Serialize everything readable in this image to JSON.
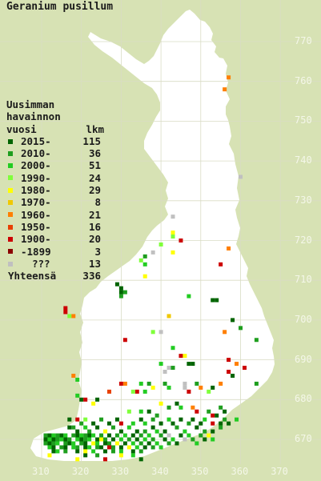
{
  "title": "Geranium pusillum",
  "legend": {
    "header_lines": [
      "Uusimman",
      "havainnon"
    ],
    "col_year": "vuosi",
    "col_count": "lkm",
    "rows": [
      {
        "label": "2015-",
        "count": "115",
        "color": "#006400"
      },
      {
        "label": "2010-",
        "count": "36",
        "color": "#1e9e1e"
      },
      {
        "label": "2000-",
        "count": "51",
        "color": "#22cc22"
      },
      {
        "label": "1990-",
        "count": "24",
        "color": "#7fff3a"
      },
      {
        "label": "1980-",
        "count": "29",
        "color": "#ffff00"
      },
      {
        "label": "1970-",
        "count": "8",
        "color": "#f0c800"
      },
      {
        "label": "1960-",
        "count": "21",
        "color": "#ff7f00"
      },
      {
        "label": "1950-",
        "count": "16",
        "color": "#e84000"
      },
      {
        "label": "1900-",
        "count": "20",
        "color": "#cc0000"
      },
      {
        "label": "-1899",
        "count": "3",
        "color": "#8b0000"
      },
      {
        "label": "???",
        "count": "13",
        "color": "#c0c0c0"
      }
    ],
    "total_label": "Yhteensä",
    "total_count": "336"
  },
  "axis": {
    "y_ticks": [
      "770",
      "760",
      "750",
      "740",
      "730",
      "720",
      "710",
      "700",
      "690",
      "680",
      "670"
    ],
    "x_ticks": [
      "310",
      "320",
      "330",
      "340",
      "350",
      "360",
      "370"
    ]
  },
  "colors": {
    "background": "#d7e2b4",
    "land": "#ffffff",
    "grid": "#d9dcc4"
  },
  "observations": [
    {
      "e": 357,
      "n": 761,
      "c": 6
    },
    {
      "e": 356,
      "n": 758,
      "c": 6
    },
    {
      "e": 360,
      "n": 736,
      "c": 10
    },
    {
      "e": 343,
      "n": 726,
      "c": 10
    },
    {
      "e": 343,
      "n": 722,
      "c": 4
    },
    {
      "e": 343,
      "n": 721,
      "c": 3
    },
    {
      "e": 345,
      "n": 720,
      "c": 8
    },
    {
      "e": 340,
      "n": 719,
      "c": 3
    },
    {
      "e": 357,
      "n": 718,
      "c": 6
    },
    {
      "e": 343,
      "n": 717,
      "c": 4
    },
    {
      "e": 338,
      "n": 717,
      "c": 10
    },
    {
      "e": 336,
      "n": 716,
      "c": 1
    },
    {
      "e": 335,
      "n": 715,
      "c": 3
    },
    {
      "e": 336,
      "n": 714,
      "c": 2
    },
    {
      "e": 355,
      "n": 714,
      "c": 8
    },
    {
      "e": 336,
      "n": 711,
      "c": 4
    },
    {
      "e": 329,
      "n": 709,
      "c": 0
    },
    {
      "e": 330,
      "n": 708,
      "c": 0
    },
    {
      "e": 331,
      "n": 707,
      "c": 1
    },
    {
      "e": 330,
      "n": 707,
      "c": 0
    },
    {
      "e": 330,
      "n": 706,
      "c": 1
    },
    {
      "e": 347,
      "n": 706,
      "c": 2
    },
    {
      "e": 353,
      "n": 705,
      "c": 0
    },
    {
      "e": 354,
      "n": 705,
      "c": 0
    },
    {
      "e": 316,
      "n": 703,
      "c": 8
    },
    {
      "e": 316,
      "n": 702,
      "c": 8
    },
    {
      "e": 317,
      "n": 701,
      "c": 3
    },
    {
      "e": 318,
      "n": 701,
      "c": 6
    },
    {
      "e": 342,
      "n": 701,
      "c": 5
    },
    {
      "e": 358,
      "n": 700,
      "c": 0
    },
    {
      "e": 356,
      "n": 697,
      "c": 6
    },
    {
      "e": 360,
      "n": 698,
      "c": 1
    },
    {
      "e": 364,
      "n": 695,
      "c": 1
    },
    {
      "e": 338,
      "n": 697,
      "c": 3
    },
    {
      "e": 340,
      "n": 697,
      "c": 10
    },
    {
      "e": 331,
      "n": 695,
      "c": 8
    },
    {
      "e": 343,
      "n": 693,
      "c": 2
    },
    {
      "e": 345,
      "n": 691,
      "c": 8
    },
    {
      "e": 346,
      "n": 691,
      "c": 4
    },
    {
      "e": 347,
      "n": 689,
      "c": 0
    },
    {
      "e": 348,
      "n": 689,
      "c": 0
    },
    {
      "e": 340,
      "n": 689,
      "c": 2
    },
    {
      "e": 342,
      "n": 688,
      "c": 10
    },
    {
      "e": 341,
      "n": 687,
      "c": 10
    },
    {
      "e": 343,
      "n": 688,
      "c": 1
    },
    {
      "e": 357,
      "n": 690,
      "c": 8
    },
    {
      "e": 359,
      "n": 689,
      "c": 6
    },
    {
      "e": 361,
      "n": 688,
      "c": 8
    },
    {
      "e": 357,
      "n": 687,
      "c": 8
    },
    {
      "e": 358,
      "n": 686,
      "c": 0
    },
    {
      "e": 364,
      "n": 684,
      "c": 1
    },
    {
      "e": 318,
      "n": 686,
      "c": 6
    },
    {
      "e": 319,
      "n": 685,
      "c": 2
    },
    {
      "e": 330,
      "n": 684,
      "c": 8
    },
    {
      "e": 331,
      "n": 684,
      "c": 6
    },
    {
      "e": 335,
      "n": 684,
      "c": 2
    },
    {
      "e": 337,
      "n": 684,
      "c": 1
    },
    {
      "e": 334,
      "n": 682,
      "c": 8
    },
    {
      "e": 336,
      "n": 682,
      "c": 2
    },
    {
      "e": 338,
      "n": 683,
      "c": 4
    },
    {
      "e": 327,
      "n": 682,
      "c": 7
    },
    {
      "e": 333,
      "n": 682,
      "c": 3
    },
    {
      "e": 341,
      "n": 684,
      "c": 1
    },
    {
      "e": 342,
      "n": 683,
      "c": 2
    },
    {
      "e": 346,
      "n": 684,
      "c": 10
    },
    {
      "e": 346,
      "n": 683,
      "c": 10
    },
    {
      "e": 347,
      "n": 682,
      "c": 8
    },
    {
      "e": 349,
      "n": 684,
      "c": 1
    },
    {
      "e": 350,
      "n": 683,
      "c": 6
    },
    {
      "e": 353,
      "n": 683,
      "c": 0
    },
    {
      "e": 352,
      "n": 682,
      "c": 3
    },
    {
      "e": 355,
      "n": 684,
      "c": 6
    },
    {
      "e": 319,
      "n": 681,
      "c": 2
    },
    {
      "e": 320,
      "n": 680,
      "c": 0
    },
    {
      "e": 321,
      "n": 680,
      "c": 8
    },
    {
      "e": 323,
      "n": 679,
      "c": 4
    },
    {
      "e": 324,
      "n": 680,
      "c": 0
    },
    {
      "e": 340,
      "n": 679,
      "c": 4
    },
    {
      "e": 342,
      "n": 678,
      "c": 1
    },
    {
      "e": 344,
      "n": 679,
      "c": 0
    },
    {
      "e": 345,
      "n": 678,
      "c": 2
    },
    {
      "e": 348,
      "n": 678,
      "c": 6
    },
    {
      "e": 349,
      "n": 677,
      "c": 8
    },
    {
      "e": 352,
      "n": 677,
      "c": 1
    },
    {
      "e": 353,
      "n": 676,
      "c": 8
    },
    {
      "e": 354,
      "n": 676,
      "c": 0
    },
    {
      "e": 355,
      "n": 678,
      "c": 1
    },
    {
      "e": 356,
      "n": 677,
      "c": 0
    },
    {
      "e": 332,
      "n": 677,
      "c": 3
    },
    {
      "e": 335,
      "n": 677,
      "c": 2
    },
    {
      "e": 337,
      "n": 677,
      "c": 0
    },
    {
      "e": 339,
      "n": 676,
      "c": 1
    },
    {
      "e": 317,
      "n": 675,
      "c": 0
    },
    {
      "e": 319,
      "n": 675,
      "c": 8
    },
    {
      "e": 320,
      "n": 674,
      "c": 1
    },
    {
      "e": 321,
      "n": 675,
      "c": 3
    },
    {
      "e": 323,
      "n": 674,
      "c": 0
    },
    {
      "e": 325,
      "n": 675,
      "c": 1
    },
    {
      "e": 327,
      "n": 674,
      "c": 0
    },
    {
      "e": 329,
      "n": 675,
      "c": 0
    },
    {
      "e": 330,
      "n": 674,
      "c": 8
    },
    {
      "e": 333,
      "n": 674,
      "c": 2
    },
    {
      "e": 335,
      "n": 675,
      "c": 0
    },
    {
      "e": 336,
      "n": 674,
      "c": 2
    },
    {
      "e": 338,
      "n": 675,
      "c": 1
    },
    {
      "e": 340,
      "n": 674,
      "c": 0
    },
    {
      "e": 342,
      "n": 675,
      "c": 2
    },
    {
      "e": 343,
      "n": 674,
      "c": 0
    },
    {
      "e": 345,
      "n": 675,
      "c": 0
    },
    {
      "e": 347,
      "n": 674,
      "c": 1
    },
    {
      "e": 348,
      "n": 675,
      "c": 0
    },
    {
      "e": 350,
      "n": 674,
      "c": 0
    },
    {
      "e": 351,
      "n": 675,
      "c": 2
    },
    {
      "e": 353,
      "n": 674,
      "c": 8
    },
    {
      "e": 355,
      "n": 674,
      "c": 0
    },
    {
      "e": 356,
      "n": 675,
      "c": 1
    },
    {
      "e": 357,
      "n": 674,
      "c": 0
    },
    {
      "e": 359,
      "n": 675,
      "c": 2
    },
    {
      "e": 317,
      "n": 673,
      "c": 0
    },
    {
      "e": 318,
      "n": 673,
      "c": 1
    },
    {
      "e": 319,
      "n": 672,
      "c": 0
    },
    {
      "e": 321,
      "n": 673,
      "c": 2
    },
    {
      "e": 322,
      "n": 672,
      "c": 1
    },
    {
      "e": 324,
      "n": 673,
      "c": 0
    },
    {
      "e": 326,
      "n": 672,
      "c": 4
    },
    {
      "e": 328,
      "n": 673,
      "c": 1
    },
    {
      "e": 330,
      "n": 672,
      "c": 0
    },
    {
      "e": 332,
      "n": 673,
      "c": 2
    },
    {
      "e": 334,
      "n": 672,
      "c": 0
    },
    {
      "e": 336,
      "n": 672,
      "c": 1
    },
    {
      "e": 338,
      "n": 673,
      "c": 0
    },
    {
      "e": 339,
      "n": 672,
      "c": 2
    },
    {
      "e": 341,
      "n": 672,
      "c": 0
    },
    {
      "e": 344,
      "n": 673,
      "c": 1
    },
    {
      "e": 346,
      "n": 672,
      "c": 2
    },
    {
      "e": 349,
      "n": 673,
      "c": 0
    },
    {
      "e": 351,
      "n": 672,
      "c": 1
    },
    {
      "e": 353,
      "n": 672,
      "c": 0
    },
    {
      "e": 355,
      "n": 673,
      "c": 1
    },
    {
      "e": 311,
      "n": 671,
      "c": 1
    },
    {
      "e": 312,
      "n": 671,
      "c": 0
    },
    {
      "e": 313,
      "n": 671,
      "c": 2
    },
    {
      "e": 314,
      "n": 671,
      "c": 1
    },
    {
      "e": 315,
      "n": 671,
      "c": 0
    },
    {
      "e": 316,
      "n": 671,
      "c": 2
    },
    {
      "e": 318,
      "n": 671,
      "c": 1
    },
    {
      "e": 319,
      "n": 671,
      "c": 0
    },
    {
      "e": 320,
      "n": 671,
      "c": 2
    },
    {
      "e": 321,
      "n": 671,
      "c": 1
    },
    {
      "e": 322,
      "n": 671,
      "c": 0
    },
    {
      "e": 323,
      "n": 671,
      "c": 2
    },
    {
      "e": 325,
      "n": 671,
      "c": 1
    },
    {
      "e": 327,
      "n": 671,
      "c": 0
    },
    {
      "e": 329,
      "n": 671,
      "c": 1
    },
    {
      "e": 331,
      "n": 671,
      "c": 2
    },
    {
      "e": 333,
      "n": 671,
      "c": 0
    },
    {
      "e": 335,
      "n": 671,
      "c": 1
    },
    {
      "e": 337,
      "n": 671,
      "c": 2
    },
    {
      "e": 340,
      "n": 671,
      "c": 1
    },
    {
      "e": 342,
      "n": 671,
      "c": 10
    },
    {
      "e": 345,
      "n": 671,
      "c": 0
    },
    {
      "e": 347,
      "n": 671,
      "c": 2
    },
    {
      "e": 350,
      "n": 671,
      "c": 1
    },
    {
      "e": 352,
      "n": 671,
      "c": 4
    },
    {
      "e": 311,
      "n": 670,
      "c": 0
    },
    {
      "e": 312,
      "n": 670,
      "c": 2
    },
    {
      "e": 313,
      "n": 670,
      "c": 0
    },
    {
      "e": 314,
      "n": 670,
      "c": 1
    },
    {
      "e": 315,
      "n": 670,
      "c": 2
    },
    {
      "e": 316,
      "n": 670,
      "c": 0
    },
    {
      "e": 317,
      "n": 670,
      "c": 1
    },
    {
      "e": 319,
      "n": 670,
      "c": 2
    },
    {
      "e": 320,
      "n": 670,
      "c": 0
    },
    {
      "e": 321,
      "n": 670,
      "c": 1
    },
    {
      "e": 322,
      "n": 670,
      "c": 2
    },
    {
      "e": 324,
      "n": 670,
      "c": 0
    },
    {
      "e": 325,
      "n": 670,
      "c": 4
    },
    {
      "e": 326,
      "n": 670,
      "c": 1
    },
    {
      "e": 328,
      "n": 670,
      "c": 0
    },
    {
      "e": 330,
      "n": 670,
      "c": 2
    },
    {
      "e": 332,
      "n": 670,
      "c": 1
    },
    {
      "e": 334,
      "n": 670,
      "c": 0
    },
    {
      "e": 336,
      "n": 670,
      "c": 2
    },
    {
      "e": 338,
      "n": 670,
      "c": 1
    },
    {
      "e": 341,
      "n": 670,
      "c": 0
    },
    {
      "e": 343,
      "n": 670,
      "c": 2
    },
    {
      "e": 346,
      "n": 670,
      "c": 10
    },
    {
      "e": 348,
      "n": 670,
      "c": 1
    },
    {
      "e": 351,
      "n": 670,
      "c": 0
    },
    {
      "e": 353,
      "n": 670,
      "c": 2
    },
    {
      "e": 311,
      "n": 669,
      "c": 1
    },
    {
      "e": 312,
      "n": 669,
      "c": 0
    },
    {
      "e": 313,
      "n": 669,
      "c": 1
    },
    {
      "e": 314,
      "n": 669,
      "c": 2
    },
    {
      "e": 316,
      "n": 669,
      "c": 1
    },
    {
      "e": 317,
      "n": 669,
      "c": 0
    },
    {
      "e": 318,
      "n": 669,
      "c": 2
    },
    {
      "e": 320,
      "n": 669,
      "c": 1
    },
    {
      "e": 321,
      "n": 669,
      "c": 0
    },
    {
      "e": 323,
      "n": 669,
      "c": 4
    },
    {
      "e": 324,
      "n": 669,
      "c": 2
    },
    {
      "e": 326,
      "n": 669,
      "c": 0
    },
    {
      "e": 327,
      "n": 669,
      "c": 1
    },
    {
      "e": 329,
      "n": 669,
      "c": 4
    },
    {
      "e": 331,
      "n": 669,
      "c": 0
    },
    {
      "e": 333,
      "n": 669,
      "c": 2
    },
    {
      "e": 335,
      "n": 669,
      "c": 1
    },
    {
      "e": 337,
      "n": 669,
      "c": 0
    },
    {
      "e": 339,
      "n": 669,
      "c": 2
    },
    {
      "e": 342,
      "n": 669,
      "c": 1
    },
    {
      "e": 344,
      "n": 669,
      "c": 0
    },
    {
      "e": 349,
      "n": 669,
      "c": 2
    },
    {
      "e": 312,
      "n": 668,
      "c": 2
    },
    {
      "e": 313,
      "n": 668,
      "c": 0
    },
    {
      "e": 315,
      "n": 668,
      "c": 1
    },
    {
      "e": 316,
      "n": 668,
      "c": 0
    },
    {
      "e": 318,
      "n": 668,
      "c": 2
    },
    {
      "e": 319,
      "n": 668,
      "c": 1
    },
    {
      "e": 321,
      "n": 668,
      "c": 0
    },
    {
      "e": 322,
      "n": 668,
      "c": 2
    },
    {
      "e": 324,
      "n": 668,
      "c": 1
    },
    {
      "e": 325,
      "n": 668,
      "c": 0
    },
    {
      "e": 327,
      "n": 668,
      "c": 8
    },
    {
      "e": 328,
      "n": 668,
      "c": 1
    },
    {
      "e": 330,
      "n": 668,
      "c": 0
    },
    {
      "e": 332,
      "n": 668,
      "c": 4
    },
    {
      "e": 334,
      "n": 668,
      "c": 2
    },
    {
      "e": 336,
      "n": 668,
      "c": 0
    },
    {
      "e": 338,
      "n": 668,
      "c": 1
    },
    {
      "e": 340,
      "n": 668,
      "c": 2
    },
    {
      "e": 313,
      "n": 667,
      "c": 0
    },
    {
      "e": 314,
      "n": 667,
      "c": 2
    },
    {
      "e": 316,
      "n": 667,
      "c": 1
    },
    {
      "e": 319,
      "n": 667,
      "c": 0
    },
    {
      "e": 321,
      "n": 667,
      "c": 4
    },
    {
      "e": 323,
      "n": 667,
      "c": 2
    },
    {
      "e": 326,
      "n": 667,
      "c": 0
    },
    {
      "e": 328,
      "n": 667,
      "c": 1
    },
    {
      "e": 330,
      "n": 667,
      "c": 2
    },
    {
      "e": 333,
      "n": 667,
      "c": 0
    },
    {
      "e": 335,
      "n": 667,
      "c": 1
    },
    {
      "e": 312,
      "n": 666,
      "c": 4
    },
    {
      "e": 319,
      "n": 665,
      "c": 4
    },
    {
      "e": 321,
      "n": 666,
      "c": 0
    },
    {
      "e": 324,
      "n": 666,
      "c": 1
    },
    {
      "e": 326,
      "n": 665,
      "c": 8
    },
    {
      "e": 330,
      "n": 666,
      "c": 4
    },
    {
      "e": 333,
      "n": 666,
      "c": 2
    },
    {
      "e": 335,
      "n": 665,
      "c": 0
    }
  ]
}
